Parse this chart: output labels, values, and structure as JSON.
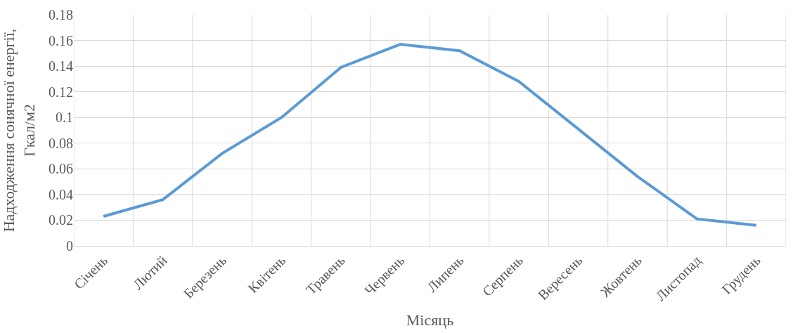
{
  "chart_data": {
    "type": "line",
    "xlabel": "Місяць",
    "ylabel": "Надходження сонячної енергії, Гкал/м2",
    "categories": [
      "Січень",
      "Лютий",
      "Березень",
      "Квітень",
      "Травень",
      "Червень",
      "Липень",
      "Серпень",
      "Вересень",
      "Жовтень",
      "Листопад",
      "Грудень"
    ],
    "series": [
      {
        "color": "#5b9bd5",
        "values": [
          0.023,
          0.036,
          0.072,
          0.1,
          0.139,
          0.157,
          0.152,
          0.128,
          0.091,
          0.054,
          0.021,
          0.016
        ]
      }
    ],
    "ylim": [
      0,
      0.18
    ],
    "yticks": [
      0,
      0.02,
      0.04,
      0.06,
      0.08,
      0.1,
      0.12,
      0.14,
      0.16,
      0.18
    ],
    "grid": true,
    "legend": false,
    "marker": "none",
    "line_style": "solid"
  }
}
